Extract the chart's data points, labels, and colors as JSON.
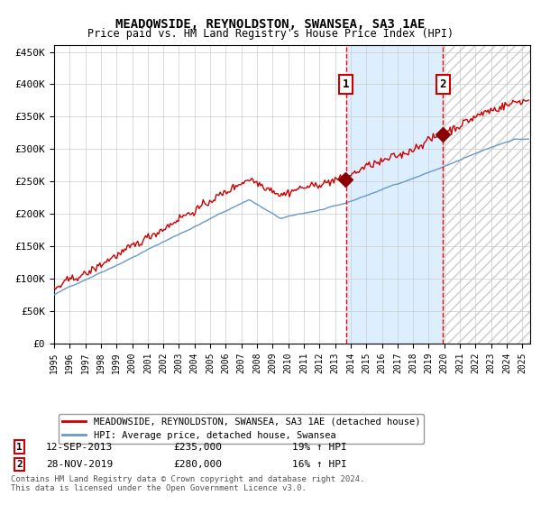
{
  "title": "MEADOWSIDE, REYNOLDSTON, SWANSEA, SA3 1AE",
  "subtitle": "Price paid vs. HM Land Registry's House Price Index (HPI)",
  "ylim": [
    0,
    460000
  ],
  "yticks": [
    0,
    50000,
    100000,
    150000,
    200000,
    250000,
    300000,
    350000,
    400000,
    450000
  ],
  "ytick_labels": [
    "£0",
    "£50K",
    "£100K",
    "£150K",
    "£200K",
    "£250K",
    "£300K",
    "£350K",
    "£400K",
    "£450K"
  ],
  "hpi_color": "#6699cc",
  "price_color": "#cc0000",
  "marker_color": "#8b0000",
  "highlight_bg": "#ddeeff",
  "grid_color": "#cccccc",
  "sale1_date_num": 2013.7,
  "sale1_price": 235000,
  "sale2_date_num": 2019.9,
  "sale2_price": 280000,
  "sale1_label": "12-SEP-2013",
  "sale1_price_label": "£235,000",
  "sale1_hpi_label": "19% ↑ HPI",
  "sale2_label": "28-NOV-2019",
  "sale2_price_label": "£280,000",
  "sale2_hpi_label": "16% ↑ HPI",
  "legend1": "MEADOWSIDE, REYNOLDSTON, SWANSEA, SA3 1AE (detached house)",
  "legend2": "HPI: Average price, detached house, Swansea",
  "footer": "Contains HM Land Registry data © Crown copyright and database right 2024.\nThis data is licensed under the Open Government Licence v3.0.",
  "xmin": 1995.0,
  "xmax": 2025.5,
  "xticks": [
    1995,
    1996,
    1997,
    1998,
    1999,
    2000,
    2001,
    2002,
    2003,
    2004,
    2005,
    2006,
    2007,
    2008,
    2009,
    2010,
    2011,
    2012,
    2013,
    2014,
    2015,
    2016,
    2017,
    2018,
    2019,
    2020,
    2021,
    2022,
    2023,
    2024,
    2025
  ]
}
